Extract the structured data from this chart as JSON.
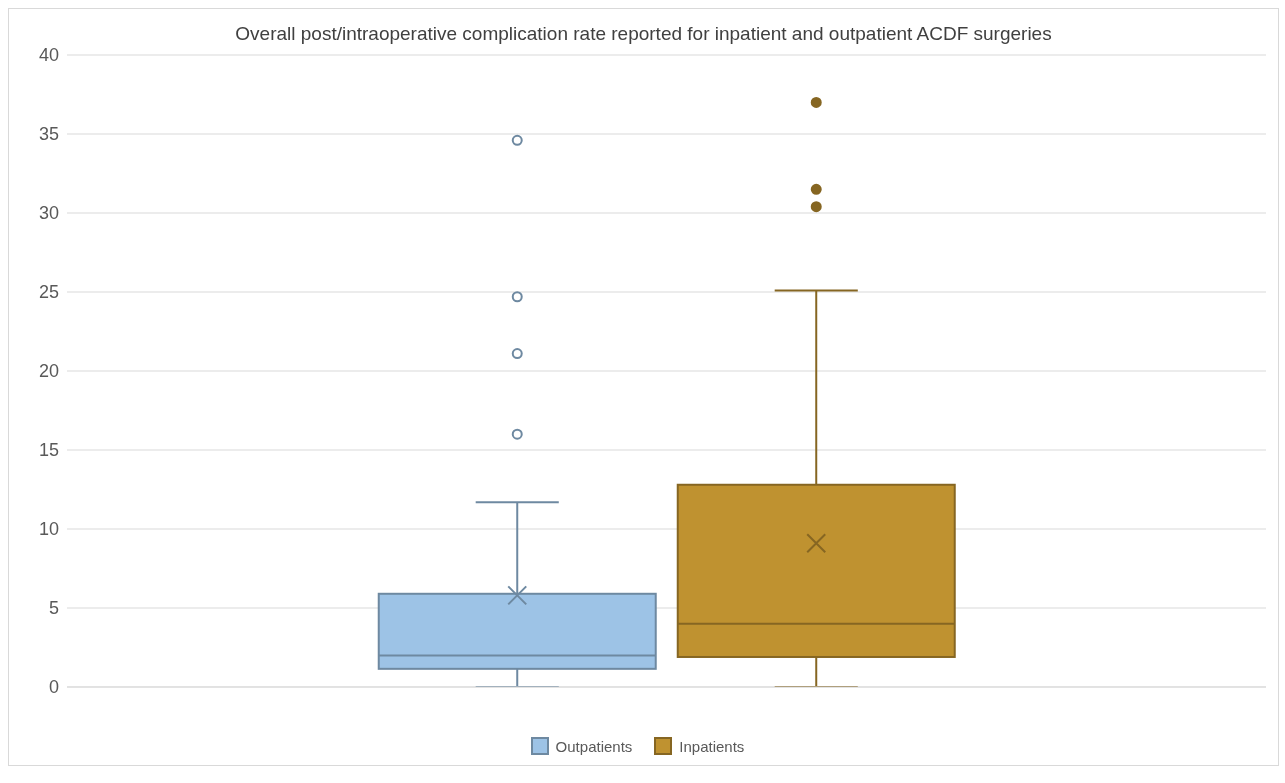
{
  "chart_data": {
    "type": "box",
    "title": "Overall post/intraoperative complication rate reported for inpatient and outpatient ACDF surgeries",
    "categories": [
      null
    ],
    "series": [
      {
        "name": "Outpatients",
        "color": "#9dc3e6",
        "boxes": [
          {
            "low": 0,
            "q1": 1.15,
            "median": 2.0,
            "q3": 5.9,
            "high": 11.7,
            "mean": 5.8,
            "outliers": [
              16.0,
              21.1,
              24.7,
              34.6
            ]
          }
        ]
      },
      {
        "name": "Inpatients",
        "color": "#bf9230",
        "boxes": [
          {
            "low": 0,
            "q1": 1.9,
            "median": 4.0,
            "q3": 12.8,
            "high": 25.1,
            "mean": 9.1,
            "outliers": [
              30.4,
              31.5,
              37.0
            ]
          }
        ]
      }
    ],
    "ylim": [
      0,
      40
    ],
    "yticks": [
      0,
      5,
      10,
      15,
      20,
      25,
      30,
      35,
      40
    ],
    "grid": "y",
    "legend": "bottom",
    "marker": "cross"
  }
}
